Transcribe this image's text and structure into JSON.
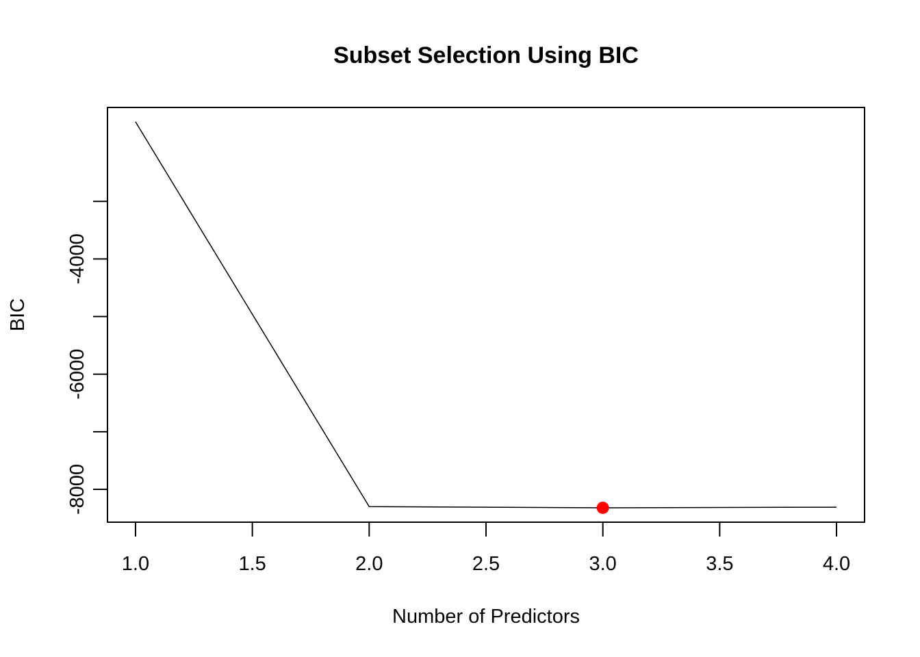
{
  "chart_data": {
    "type": "line",
    "title": "Subset Selection Using BIC",
    "xlabel": "Number of Predictors",
    "ylabel": "BIC",
    "x": [
      1,
      2,
      3,
      4
    ],
    "series": [
      {
        "values": [
          -1620,
          -8300,
          -8320,
          -8310
        ],
        "color": "#000000"
      }
    ],
    "highlight": {
      "x": 3,
      "y": -8320,
      "color": "#ff0000",
      "marker": "filled-circle"
    },
    "xlim": [
      0.88,
      4.12
    ],
    "ylim": [
      -8570,
      -1370
    ],
    "x_ticks": [
      1.0,
      1.5,
      2.0,
      2.5,
      3.0,
      3.5,
      4.0
    ],
    "x_tick_labels": [
      "1.0",
      "1.5",
      "2.0",
      "2.5",
      "3.0",
      "3.5",
      "4.0"
    ],
    "y_ticks": [
      -3000,
      -4000,
      -5000,
      -6000,
      -7000,
      -8000
    ],
    "y_tick_labels": [
      "",
      "-4000",
      "",
      "-6000",
      "",
      "-8000"
    ],
    "grid": false,
    "legend": "none",
    "box": true
  }
}
